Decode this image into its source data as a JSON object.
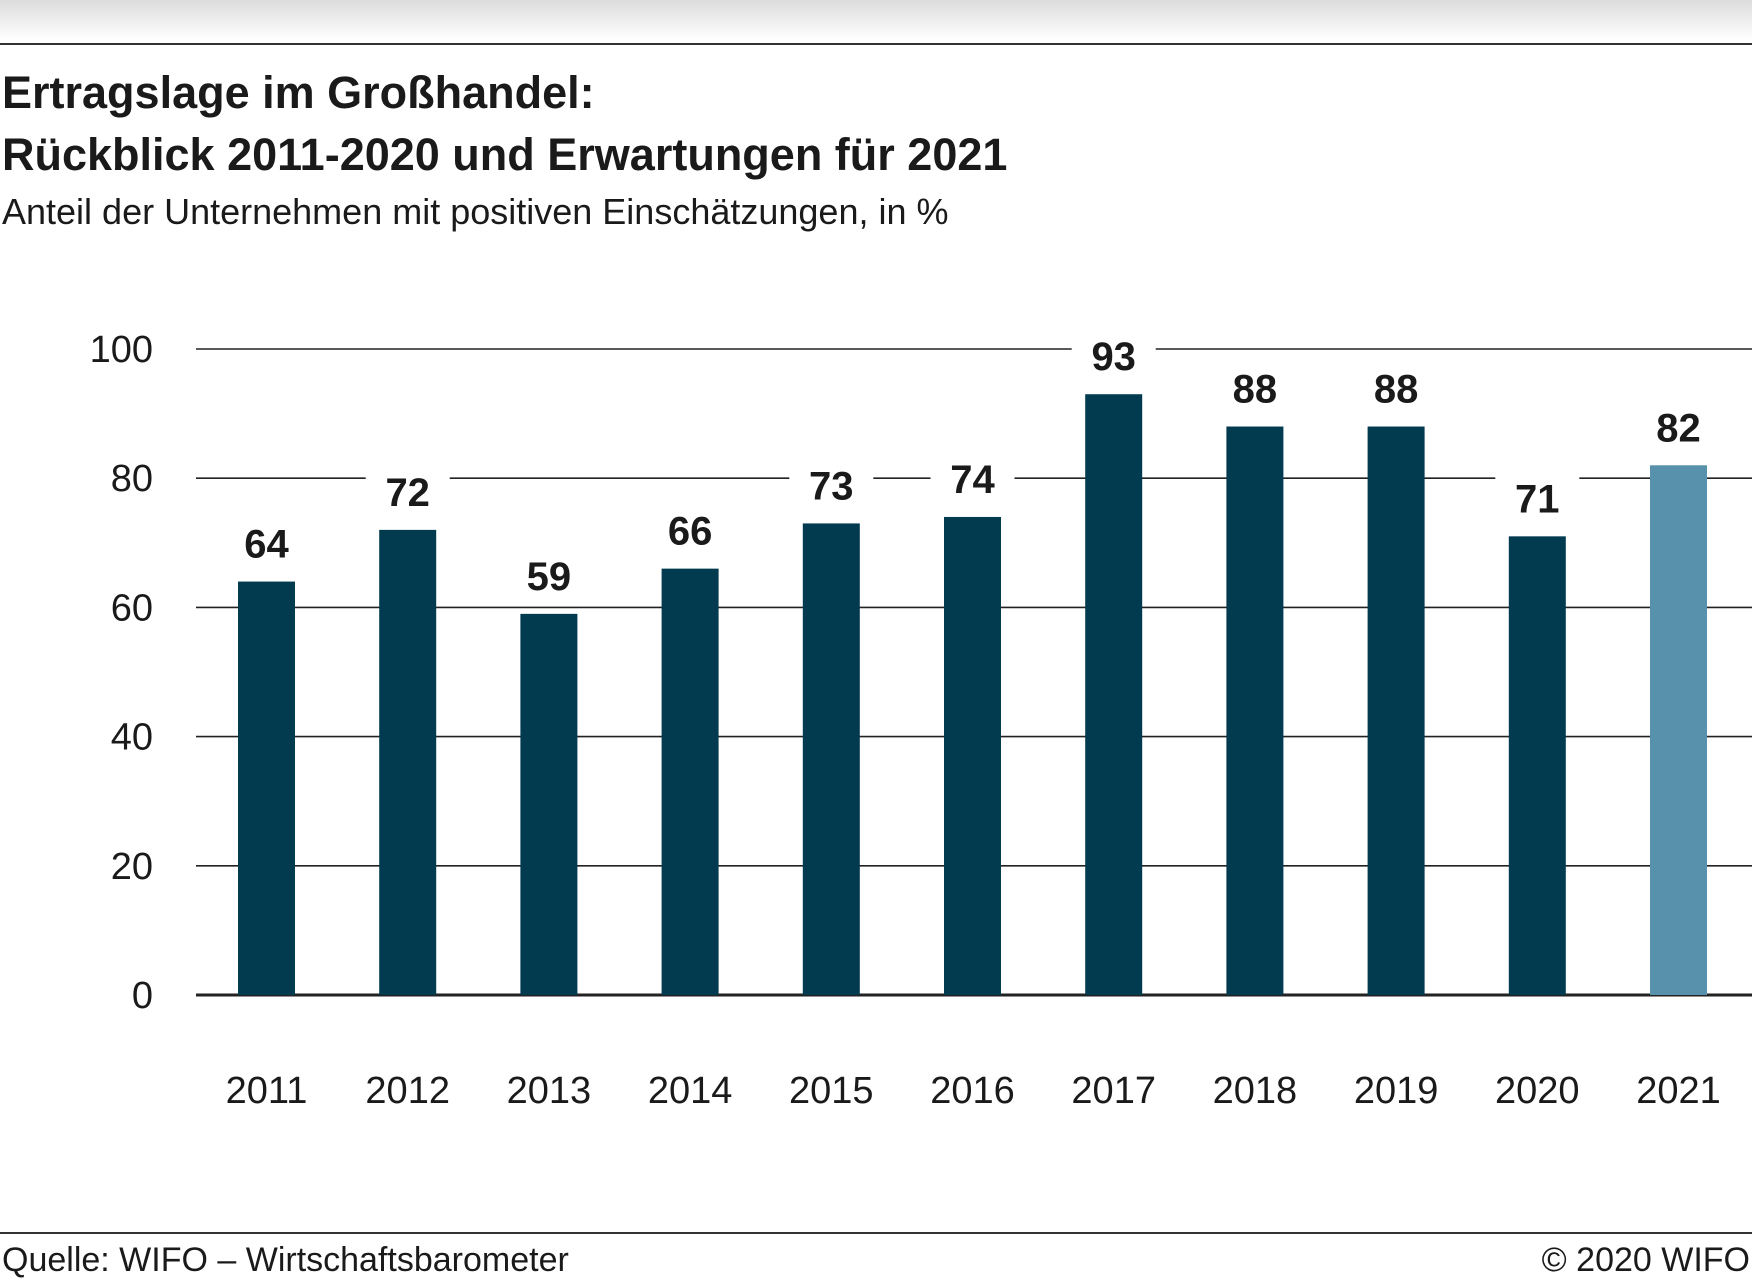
{
  "header": {
    "title_line1": "Ertragslage im Großhandel:",
    "title_line2": "Rückblick 2011-2020 und Erwartungen für 2021",
    "subtitle": "Anteil der Unternehmen mit positiven Einschätzungen, in %"
  },
  "footer": {
    "source": "Quelle: WIFO – Wirtschaftsbarometer",
    "copyright": "© 2020 WIFO"
  },
  "colors": {
    "bar": "#023a50",
    "bar_forecast": "#5791ab",
    "grid": "#222222",
    "text": "#1a1a1a"
  },
  "chart_data": {
    "type": "bar",
    "title": "Ertragslage im Großhandel: Rückblick 2011-2020 und Erwartungen für 2021",
    "subtitle": "Anteil der Unternehmen mit positiven Einschätzungen, in %",
    "categories": [
      "2011",
      "2012",
      "2013",
      "2014",
      "2015",
      "2016",
      "2017",
      "2018",
      "2019",
      "2020",
      "2021"
    ],
    "values": [
      64,
      72,
      59,
      66,
      73,
      74,
      93,
      88,
      88,
      71,
      82
    ],
    "data_labels": [
      "64",
      "72",
      "59",
      "66",
      "73",
      "74",
      "93",
      "88",
      "88",
      "71",
      "82"
    ],
    "forecast_categories": [
      "2021"
    ],
    "yticks": [
      0,
      20,
      40,
      60,
      80,
      100
    ],
    "ylim": [
      0,
      100
    ],
    "xlabel": "",
    "ylabel": "",
    "grid": true,
    "legend": "none"
  }
}
